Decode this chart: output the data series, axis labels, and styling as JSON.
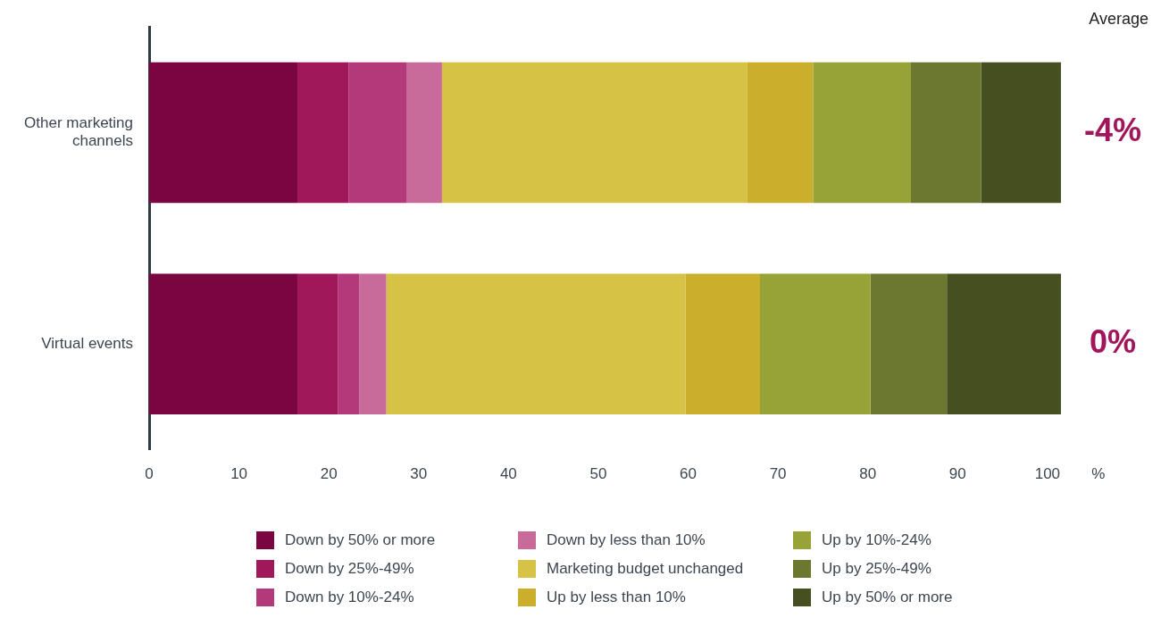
{
  "chart_data": {
    "type": "bar",
    "orientation": "horizontal",
    "stacked": true,
    "categories": [
      "Other marketing channels",
      "Virtual events"
    ],
    "series": [
      {
        "name": "Down by 50% or more",
        "color": "#7a0540",
        "values": [
          16.5,
          16.5
        ]
      },
      {
        "name": "Down by 25%-49%",
        "color": "#a0185a",
        "values": [
          5.7,
          4.5
        ]
      },
      {
        "name": "Down by 10%-24%",
        "color": "#b3397a",
        "values": [
          6.5,
          2.4
        ]
      },
      {
        "name": "Down by less than 10%",
        "color": "#c86b9a",
        "values": [
          3.9,
          3.0
        ]
      },
      {
        "name": "Marketing budget unchanged",
        "color": "#d6c244",
        "values": [
          34.0,
          33.3
        ]
      },
      {
        "name": "Up by less than 10%",
        "color": "#ccae2d",
        "values": [
          7.3,
          8.3
        ]
      },
      {
        "name": "Up by 10%-24%",
        "color": "#97a336",
        "values": [
          10.9,
          12.3
        ]
      },
      {
        "name": "Up by 25%-49%",
        "color": "#6c782f",
        "values": [
          7.8,
          8.5
        ]
      },
      {
        "name": "Up by 50% or more",
        "color": "#464f1f",
        "values": [
          8.9,
          12.7
        ]
      }
    ],
    "xlim": [
      0,
      102
    ],
    "xticks": [
      0,
      10,
      20,
      30,
      40,
      50,
      60,
      70,
      80,
      90,
      100
    ],
    "xlabel": "%",
    "grid": false,
    "legend": "bottom",
    "annotations": [
      "Average",
      "-4%",
      "0%"
    ]
  }
}
